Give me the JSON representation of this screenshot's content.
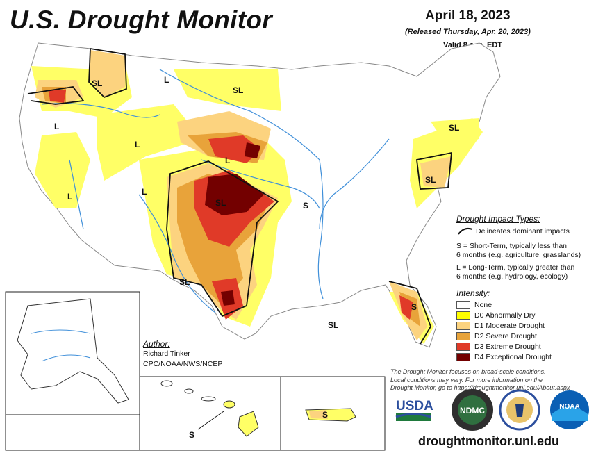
{
  "header": {
    "title": "U.S. Drought Monitor",
    "date": "April 18, 2023",
    "released": "(Released Thursday, Apr. 20, 2023)",
    "valid": "Valid 8 a.m. EDT"
  },
  "map_labels": {
    "sl": "SL",
    "l": "L",
    "s": "S"
  },
  "impact_types": {
    "heading": "Drought Impact Types:",
    "delineates": "Delineates dominant impacts",
    "short_term_line1": "S = Short-Term, typically less than",
    "short_term_line2": "6 months (e.g. agriculture, grasslands)",
    "long_term_line1": "L = Long-Term, typically greater than",
    "long_term_line2": "6 months (e.g. hydrology, ecology)"
  },
  "intensity": {
    "heading": "Intensity:",
    "items": [
      {
        "label": "None",
        "color": "#ffffff"
      },
      {
        "label": "D0 Abnormally Dry",
        "color": "#ffff00"
      },
      {
        "label": "D1 Moderate Drought",
        "color": "#fcd37f"
      },
      {
        "label": "D2 Severe Drought",
        "color": "#e8a33a"
      },
      {
        "label": "D3 Extreme Drought",
        "color": "#e03a28"
      },
      {
        "label": "D4 Exceptional Drought",
        "color": "#730000"
      }
    ]
  },
  "author": {
    "heading": "Author:",
    "name": "Richard Tinker",
    "org": "CPC/NOAA/NWS/NCEP"
  },
  "disclaimer": {
    "line1": "The Drought Monitor focuses on broad-scale conditions.",
    "line2": "Local conditions may vary. For more information on the",
    "line3": "Drought Monitor, go to https://droughtmonitor.unl.edu/About.aspx"
  },
  "logos": {
    "usda": "USDA",
    "ndmc": "NDMC",
    "noaa": "NOAA"
  },
  "website": "droughtmonitor.unl.edu",
  "colors": {
    "river": "#3f8fd9",
    "state_border": "#b0b0b0",
    "impact_line": "#111111"
  }
}
